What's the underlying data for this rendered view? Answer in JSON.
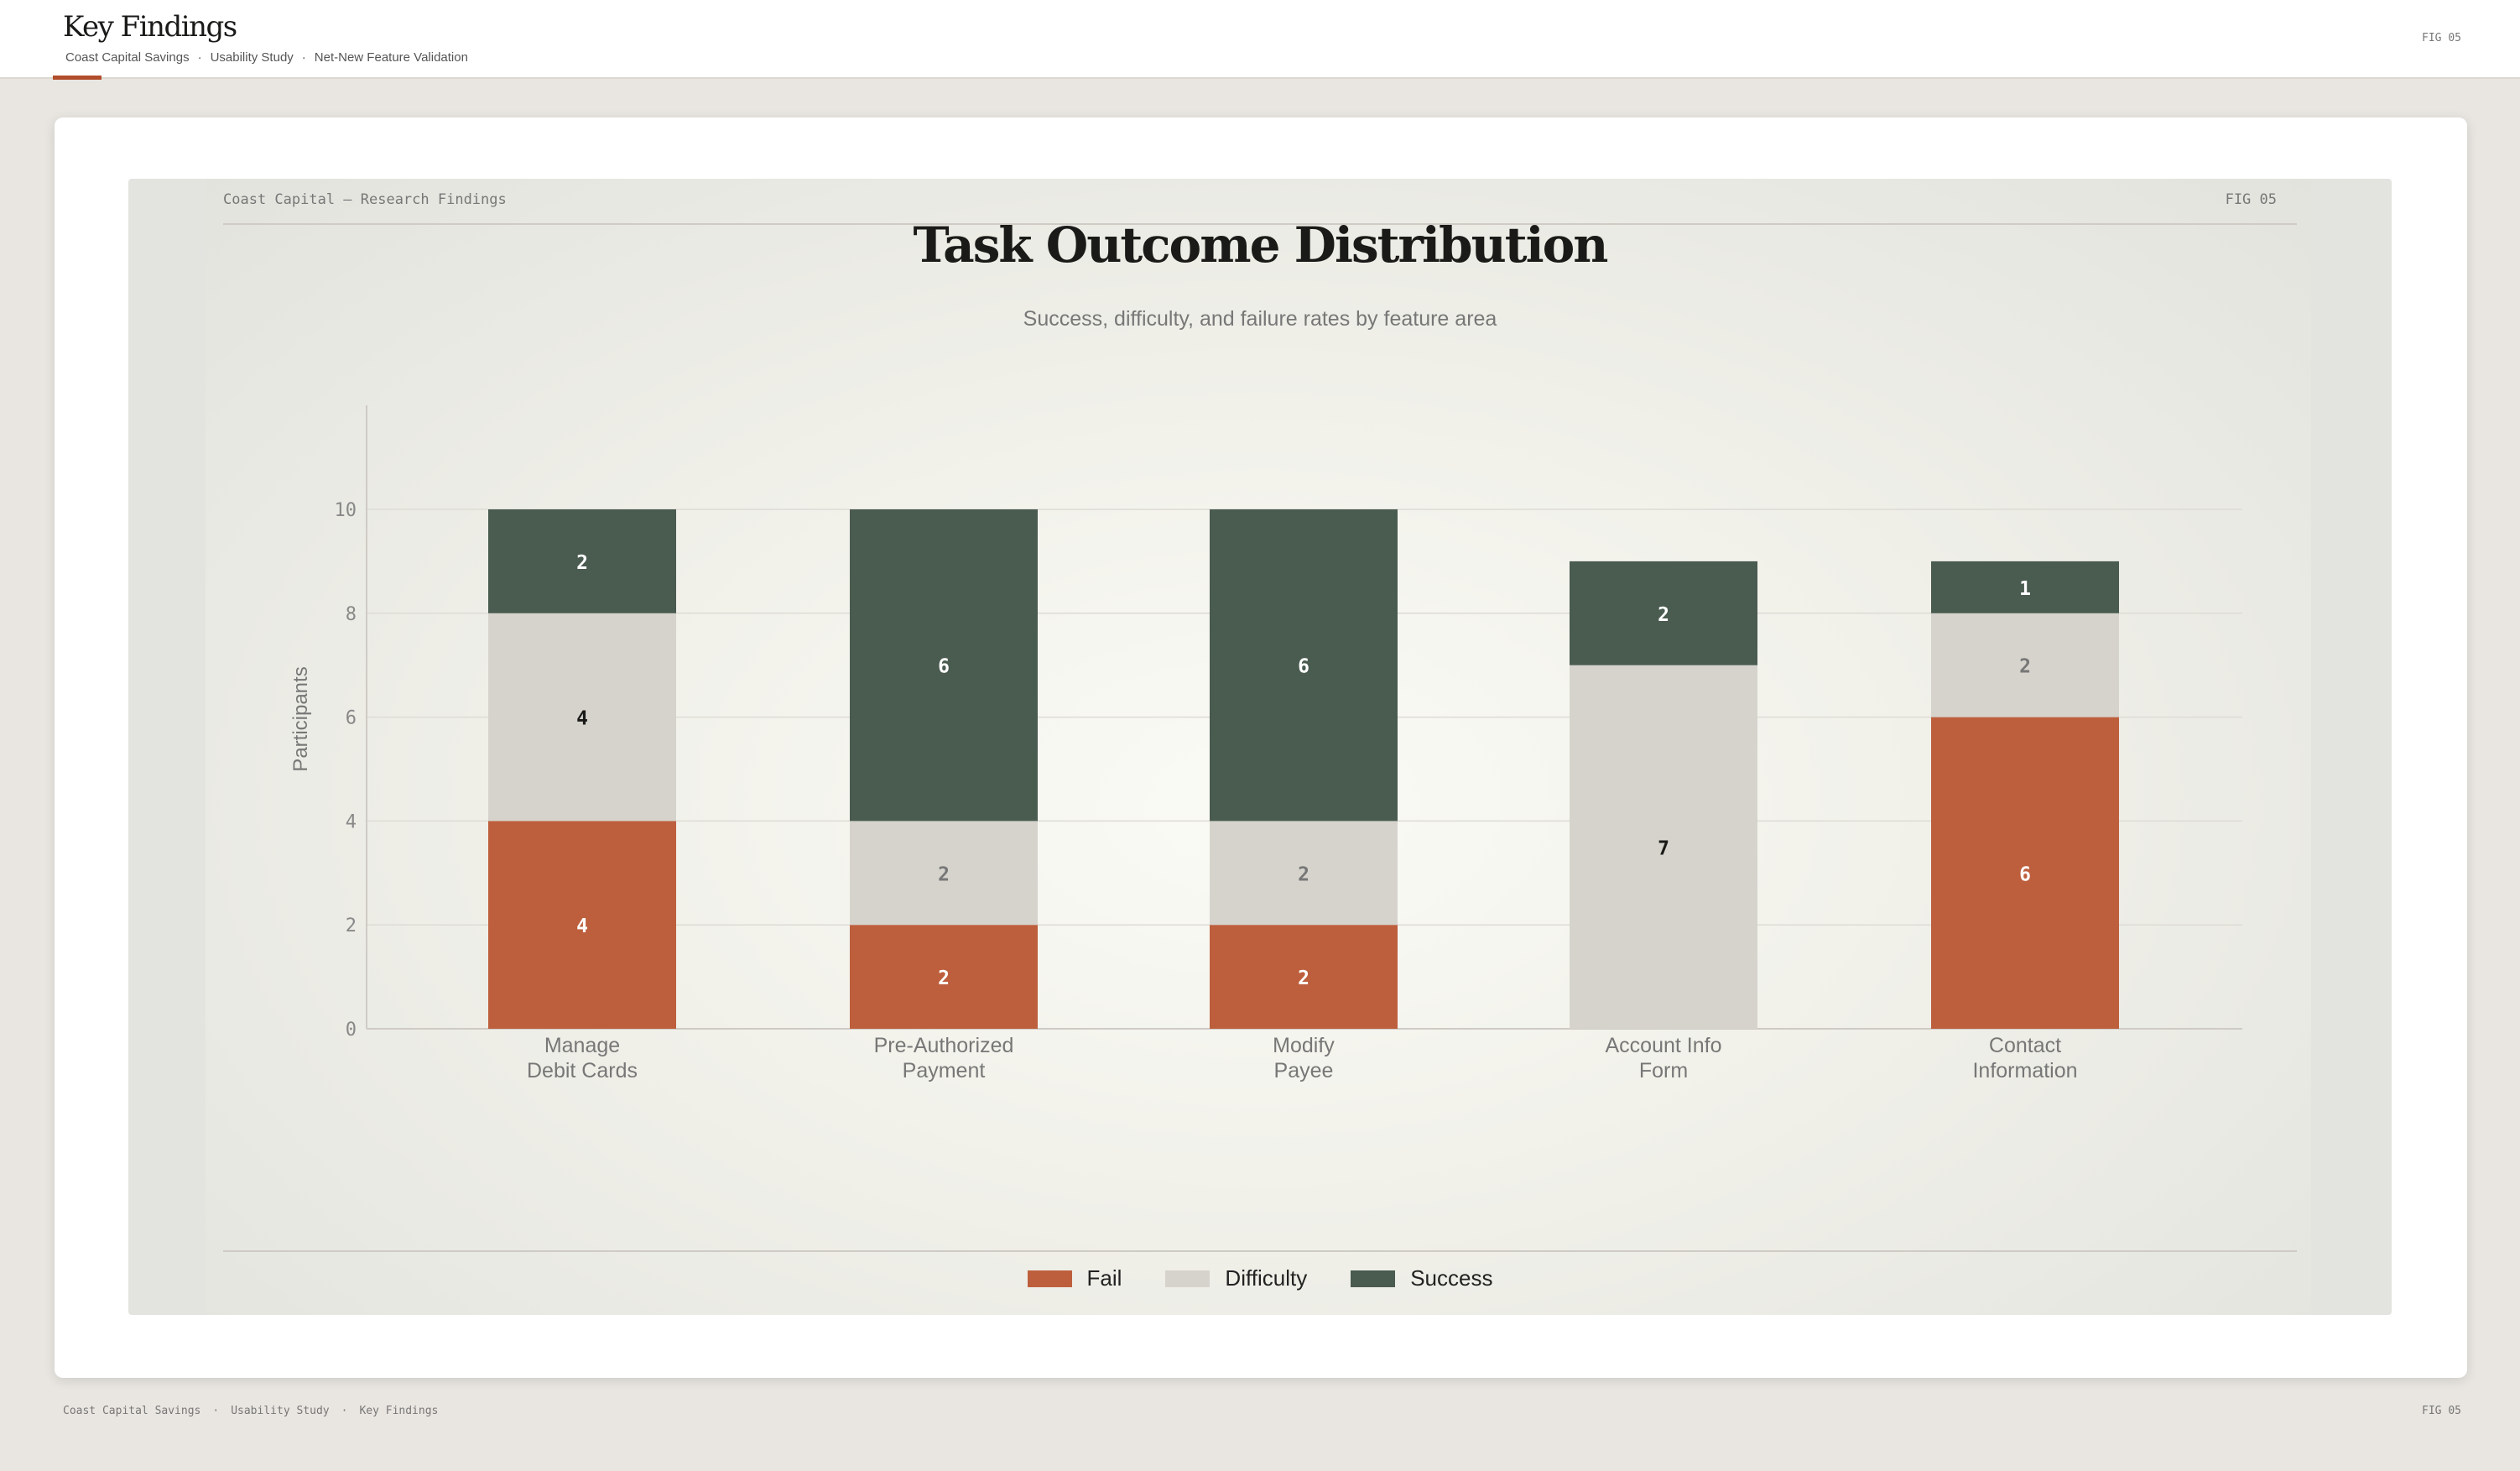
{
  "header": {
    "title": "Key Findings",
    "crumbs": [
      "Coast Capital Savings",
      "Usability Study",
      "Net-New Feature Validation"
    ],
    "fig": "FIG 05"
  },
  "panel": {
    "header": "Coast Capital — Research Findings",
    "fig": "FIG 05"
  },
  "footer": {
    "crumbs": [
      "Coast Capital Savings",
      "Usability Study",
      "Key Findings"
    ],
    "fig": "FIG 05"
  },
  "colors": {
    "accent": "#b24d2c",
    "fail": "#bd5f3d",
    "difficulty": "#d6d3cc",
    "success": "#4a5b50"
  },
  "chart_data": {
    "type": "bar",
    "stacked": true,
    "title": "Task Outcome Distribution",
    "subtitle": "Success, difficulty, and failure rates by feature area",
    "ylabel": "Participants",
    "xlabel": "",
    "ylim": [
      0,
      12
    ],
    "yticks": [
      0,
      2,
      4,
      6,
      8,
      10
    ],
    "grid": true,
    "legend_position": "bottom",
    "categories": [
      [
        "Manage",
        "Debit Cards"
      ],
      [
        "Pre-Authorized",
        "Payment"
      ],
      [
        "Modify",
        "Payee"
      ],
      [
        "Account Info",
        "Form"
      ],
      [
        "Contact",
        "Information"
      ]
    ],
    "series": [
      {
        "name": "Fail",
        "color": "#bd5f3d",
        "values": [
          4,
          2,
          2,
          0,
          6
        ]
      },
      {
        "name": "Difficulty",
        "color": "#d6d3cc",
        "values": [
          4,
          2,
          2,
          7,
          2
        ]
      },
      {
        "name": "Success",
        "color": "#4a5b50",
        "values": [
          2,
          6,
          6,
          2,
          1
        ]
      }
    ]
  }
}
